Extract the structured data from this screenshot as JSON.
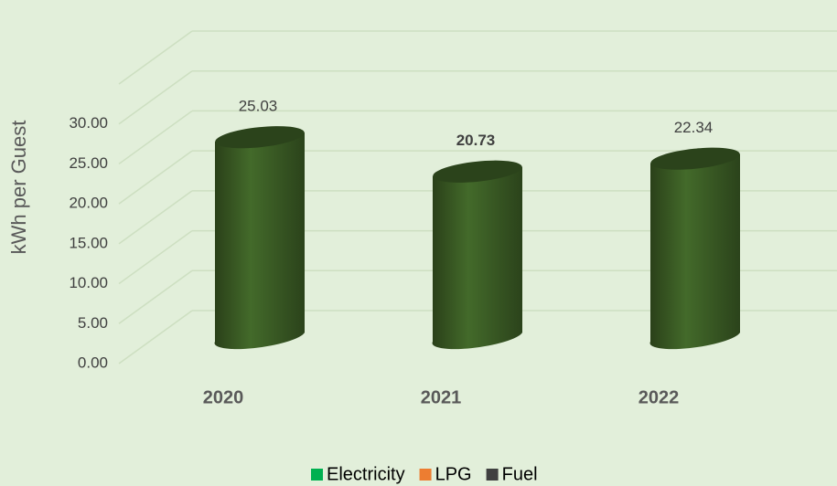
{
  "chart_data": {
    "type": "cylinder",
    "y_axis_label": "kWh per Guest",
    "categories": [
      "2020",
      "2021",
      "2022"
    ],
    "values": [
      25.03,
      20.73,
      22.34
    ],
    "value_label_bold": [
      false,
      true,
      false
    ],
    "color": "#375623",
    "ylim": [
      0,
      35
    ],
    "yticks": [
      {
        "value": 0,
        "label": "0.00"
      },
      {
        "value": 5,
        "label": "5.00"
      },
      {
        "value": 10,
        "label": "10.00"
      },
      {
        "value": 15,
        "label": "15.00"
      },
      {
        "value": 20,
        "label": "20.00"
      },
      {
        "value": 25,
        "label": "25.00"
      },
      {
        "value": 30,
        "label": "30.00"
      }
    ],
    "grid": true,
    "legend": [
      {
        "name": "Electricity",
        "color": "#00b050"
      },
      {
        "name": "LPG",
        "color": "#ed7d31"
      },
      {
        "name": "Fuel",
        "color": "#404040"
      }
    ],
    "legend_position": "bottom"
  }
}
